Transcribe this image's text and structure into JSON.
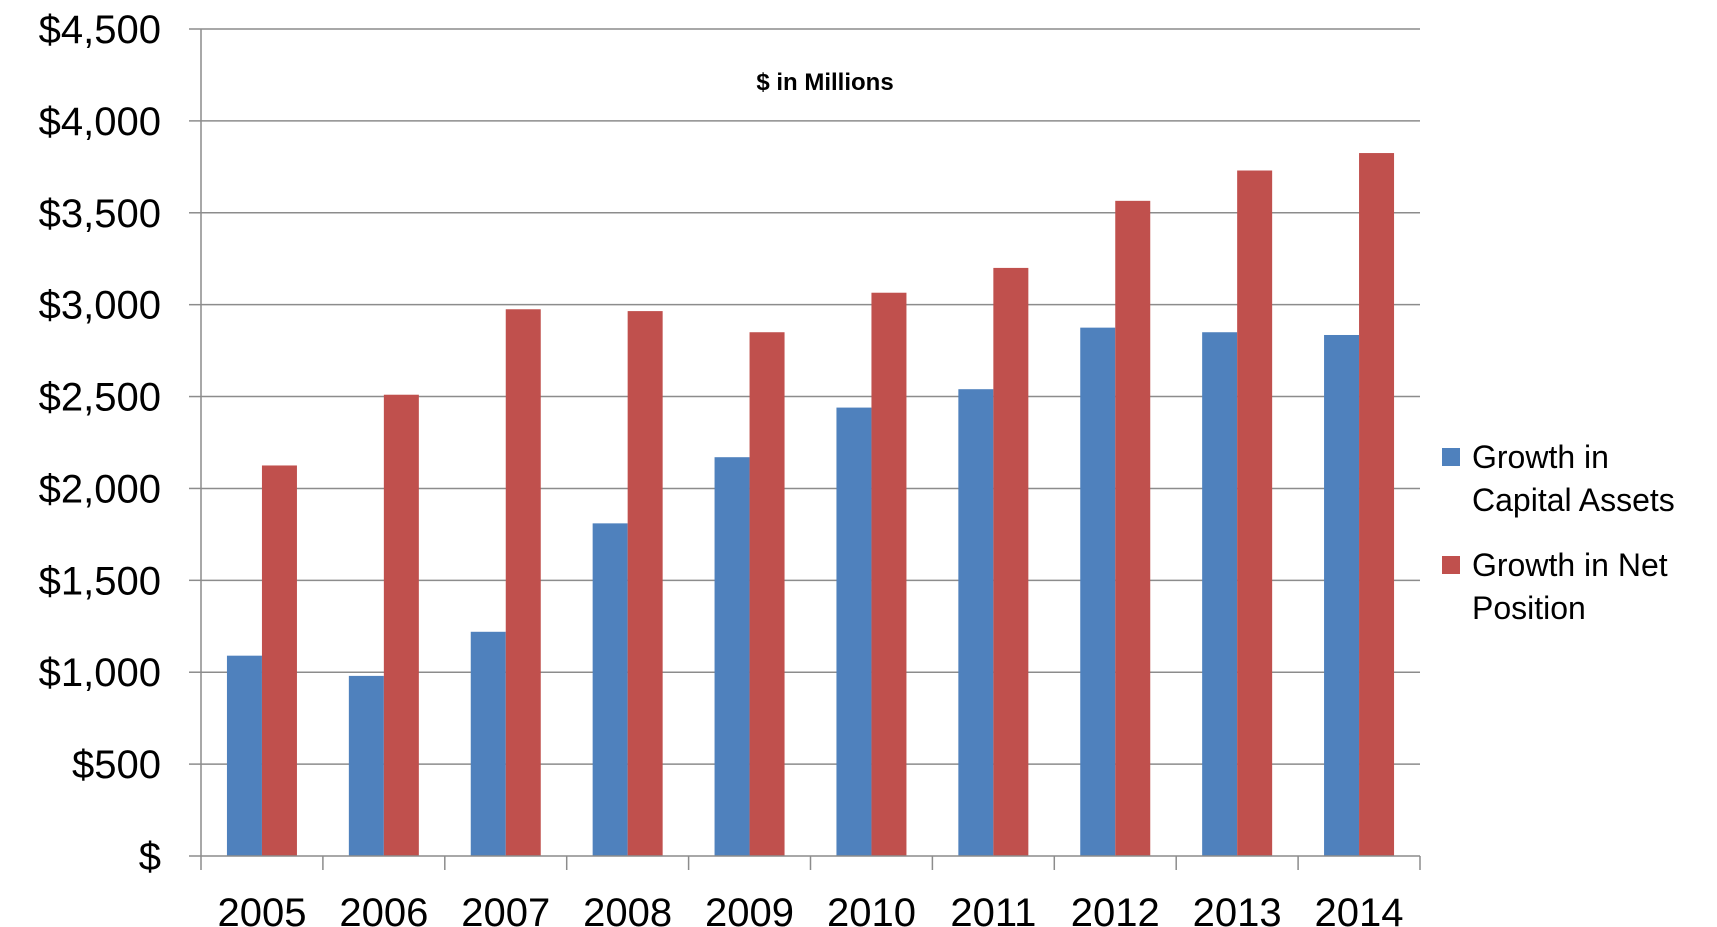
{
  "chart_data": {
    "type": "bar",
    "title": "",
    "subtitle": "$ in Millions",
    "xlabel": "",
    "ylabel": "",
    "categories": [
      "2005",
      "2006",
      "2007",
      "2008",
      "2009",
      "2010",
      "2011",
      "2012",
      "2013",
      "2014"
    ],
    "series": [
      {
        "name": "Growth in Capital Assets",
        "color": "#4F81BD",
        "values": [
          1090,
          980,
          1220,
          1810,
          2170,
          2440,
          2540,
          2875,
          2850,
          2835
        ]
      },
      {
        "name": "Growth in Net Position",
        "color": "#C0504D",
        "values": [
          2125,
          2510,
          2975,
          2965,
          2850,
          3065,
          3200,
          3565,
          3730,
          3825
        ]
      }
    ],
    "ylim": [
      0,
      4500
    ],
    "yticks": [
      0,
      500,
      1000,
      1500,
      2000,
      2500,
      3000,
      3500,
      4000,
      4500
    ],
    "ytick_labels": [
      "$",
      "$500",
      "$1,000",
      "$1,500",
      "$2,000",
      "$2,500",
      "$3,000",
      "$3,500",
      "$4,000",
      "$4,500"
    ],
    "grid": true,
    "legend_position": "right"
  }
}
